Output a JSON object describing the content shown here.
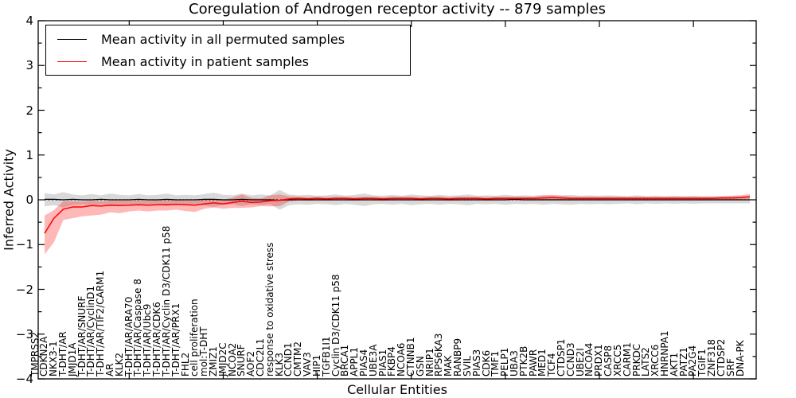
{
  "figure": {
    "title": "Coregulation of Androgen receptor activity -- 879 samples",
    "xlabel": "Cellular Entities",
    "ylabel": "Inferred Activity"
  },
  "legend": {
    "entries": [
      {
        "label": "Mean activity in all permuted samples",
        "color": "#000000"
      },
      {
        "label": "Mean activity in patient samples",
        "color": "#ff0000"
      }
    ]
  },
  "axes": {
    "y_tick_labels": [
      "4",
      "3",
      "2",
      "1",
      "0",
      "−1",
      "−2",
      "−3",
      "−4"
    ],
    "y_tick_values": [
      4,
      3,
      2,
      1,
      0,
      -1,
      -2,
      -3,
      -4
    ],
    "ylim": [
      -4,
      4
    ]
  },
  "chart_data": {
    "type": "line",
    "title": "Coregulation of Androgen receptor activity -- 879 samples",
    "xlabel": "Cellular Entities",
    "ylabel": "Inferred Activity",
    "ylim": [
      -4,
      4
    ],
    "grid": false,
    "legend_position": "upper left",
    "zero_reference_line": 0,
    "categories": [
      "TMPRSS2",
      "CDKN2A",
      "NKX3-1",
      "T-DHT/AR",
      "JMJD1A",
      "T-DHT/AR/SNURF",
      "T-DHT/AR/CyclinD1",
      "T-DHT/AR/TIF2/CARM1",
      "AR",
      "KLK2",
      "T-DHT/AR/ARA70",
      "T-DHT/AR/Caspase 8",
      "T-DHT/AR/Ubc9",
      "T-DHT/AR/CDK6",
      "T-DHT/AR/Cyclin D3/CDK11 p58",
      "T-DHT/AR/PRX1",
      "FHL2",
      "cell proliferation",
      "mol:T-DHT",
      "ZMIZ1",
      "JMJD2C",
      "NCOA2",
      "SNURF",
      "AOF2",
      "CDC2L1",
      "response to oxidative stress",
      "KLK3",
      "CCND1",
      "CMTM2",
      "VAV3",
      "HIP1",
      "TGFB1I1",
      "Cyclin D3/CDK11 p58",
      "BRCA1",
      "APPL1",
      "PIAS4",
      "UBE3A",
      "PIAS1",
      "FKBP4",
      "NCOA6",
      "CTNNB1",
      "GSN",
      "NRIP1",
      "RPS6KA3",
      "MAK",
      "RANBP9",
      "SVIL",
      "PIAS3",
      "CDK6",
      "TMF1",
      "PELP1",
      "UBA3",
      "PTK2B",
      "PAWR",
      "MED1",
      "TCF4",
      "CTDSP1",
      "CCND3",
      "UBE2I",
      "NCOA4",
      "PRDX1",
      "CASP8",
      "XRCC5",
      "CARM1",
      "PRKDC",
      "LATS2",
      "XRCC6",
      "HNRNPA1",
      "AKT1",
      "PATZ1",
      "PA2G4",
      "TGIF1",
      "ZNF318",
      "CTDSP2",
      "SRF",
      "DNA-PK"
    ],
    "series": [
      {
        "name": "Mean activity in all permuted samples",
        "color": "#000000",
        "band_color": "rgba(0,0,0,0.15)",
        "line_width": 1.3,
        "values": [
          0.01,
          0.01,
          0.0,
          0.01,
          0.0,
          0.0,
          0.01,
          0.0,
          0.0,
          0.0,
          0.01,
          0.0,
          0.0,
          0.01,
          0.0,
          0.0,
          0.0,
          0.01,
          0.01,
          0.0,
          0.0,
          0.01,
          0.0,
          0.0,
          0.0,
          -0.01,
          0.0,
          0.0,
          0.0,
          0.0,
          0.0,
          0.0,
          0.0,
          0.0,
          0.0,
          0.0,
          0.0,
          0.0,
          0.0,
          0.0,
          0.0,
          0.0,
          0.0,
          0.0,
          0.0,
          0.0,
          0.0,
          0.0,
          0.0,
          0.0,
          0.01,
          0.0,
          0.0,
          0.0,
          0.0,
          0.0,
          0.0,
          0.0,
          0.0,
          0.0,
          0.0,
          0.0,
          0.0,
          0.0,
          0.0,
          0.0,
          0.0,
          0.0,
          0.0,
          0.0,
          0.0,
          0.0,
          0.0,
          0.0,
          0.0,
          0.0
        ],
        "band_upper": [
          0.15,
          0.12,
          0.17,
          0.12,
          0.1,
          0.13,
          0.1,
          0.14,
          0.11,
          0.1,
          0.13,
          0.1,
          0.11,
          0.14,
          0.1,
          0.11,
          0.1,
          0.13,
          0.16,
          0.11,
          0.1,
          0.14,
          0.1,
          0.12,
          0.1,
          0.22,
          0.12,
          0.1,
          0.11,
          0.09,
          0.1,
          0.12,
          0.09,
          0.11,
          0.14,
          0.1,
          0.09,
          0.11,
          0.09,
          0.12,
          0.1,
          0.09,
          0.11,
          0.09,
          0.1,
          0.12,
          0.09,
          0.1,
          0.09,
          0.11,
          0.09,
          0.1,
          0.09,
          0.11,
          0.09,
          0.1,
          0.11,
          0.09,
          0.1,
          0.09,
          0.1,
          0.09,
          0.08,
          0.1,
          0.08,
          0.09,
          0.08,
          0.09,
          0.08,
          0.09,
          0.08,
          0.08,
          0.08,
          0.08,
          0.08,
          0.08
        ],
        "band_lower": [
          -0.15,
          -0.12,
          -0.17,
          -0.12,
          -0.1,
          -0.13,
          -0.1,
          -0.14,
          -0.11,
          -0.1,
          -0.13,
          -0.1,
          -0.11,
          -0.14,
          -0.1,
          -0.11,
          -0.1,
          -0.13,
          -0.16,
          -0.11,
          -0.1,
          -0.14,
          -0.1,
          -0.12,
          -0.1,
          -0.22,
          -0.12,
          -0.1,
          -0.11,
          -0.09,
          -0.1,
          -0.12,
          -0.09,
          -0.11,
          -0.14,
          -0.1,
          -0.09,
          -0.11,
          -0.09,
          -0.12,
          -0.1,
          -0.09,
          -0.11,
          -0.09,
          -0.1,
          -0.12,
          -0.09,
          -0.1,
          -0.09,
          -0.11,
          -0.09,
          -0.1,
          -0.09,
          -0.11,
          -0.09,
          -0.1,
          -0.11,
          -0.09,
          -0.1,
          -0.09,
          -0.1,
          -0.09,
          -0.08,
          -0.1,
          -0.08,
          -0.09,
          -0.08,
          -0.09,
          -0.08,
          -0.09,
          -0.08,
          -0.08,
          -0.08,
          -0.08,
          -0.08,
          -0.08
        ]
      },
      {
        "name": "Mean activity in patient samples",
        "color": "#ff0000",
        "band_color": "rgba(255,0,0,0.28)",
        "line_width": 1.5,
        "values": [
          -0.75,
          -0.41,
          -0.21,
          -0.16,
          -0.16,
          -0.13,
          -0.14,
          -0.12,
          -0.13,
          -0.12,
          -0.11,
          -0.12,
          -0.11,
          -0.11,
          -0.1,
          -0.11,
          -0.12,
          -0.09,
          -0.07,
          -0.09,
          -0.06,
          -0.03,
          -0.06,
          -0.05,
          -0.02,
          -0.01,
          0.02,
          0.03,
          0.02,
          0.03,
          0.02,
          0.03,
          0.03,
          0.02,
          0.03,
          0.03,
          0.02,
          0.03,
          0.03,
          0.03,
          0.02,
          0.03,
          0.03,
          0.02,
          0.03,
          0.03,
          0.03,
          0.02,
          0.03,
          0.03,
          0.03,
          0.03,
          0.03,
          0.04,
          0.05,
          0.04,
          0.03,
          0.03,
          0.03,
          0.03,
          0.03,
          0.03,
          0.03,
          0.03,
          0.03,
          0.03,
          0.03,
          0.03,
          0.03,
          0.03,
          0.03,
          0.03,
          0.04,
          0.04,
          0.05,
          0.07
        ],
        "band_upper": [
          -0.35,
          -0.23,
          -0.03,
          -0.03,
          -0.04,
          -0.02,
          -0.03,
          -0.02,
          -0.02,
          -0.02,
          -0.01,
          -0.02,
          -0.01,
          -0.01,
          -0.01,
          -0.02,
          -0.02,
          0.0,
          0.02,
          0.0,
          0.05,
          0.12,
          0.04,
          0.03,
          0.1,
          0.12,
          0.08,
          0.07,
          0.06,
          0.07,
          0.06,
          0.07,
          0.07,
          0.06,
          0.07,
          0.07,
          0.06,
          0.07,
          0.07,
          0.07,
          0.06,
          0.07,
          0.07,
          0.06,
          0.07,
          0.07,
          0.07,
          0.06,
          0.07,
          0.07,
          0.07,
          0.07,
          0.07,
          0.09,
          0.11,
          0.09,
          0.07,
          0.07,
          0.07,
          0.07,
          0.07,
          0.07,
          0.07,
          0.07,
          0.07,
          0.07,
          0.07,
          0.07,
          0.07,
          0.07,
          0.07,
          0.07,
          0.08,
          0.09,
          0.1,
          0.13
        ],
        "band_lower": [
          -1.22,
          -0.95,
          -0.45,
          -0.41,
          -0.37,
          -0.35,
          -0.33,
          -0.28,
          -0.3,
          -0.26,
          -0.24,
          -0.26,
          -0.24,
          -0.24,
          -0.22,
          -0.25,
          -0.27,
          -0.2,
          -0.17,
          -0.2,
          -0.18,
          -0.18,
          -0.17,
          -0.14,
          -0.15,
          -0.14,
          -0.04,
          -0.01,
          -0.02,
          -0.01,
          -0.02,
          -0.01,
          -0.01,
          -0.02,
          -0.01,
          -0.01,
          -0.02,
          -0.01,
          -0.01,
          -0.01,
          -0.02,
          -0.01,
          -0.01,
          -0.02,
          -0.01,
          -0.01,
          -0.01,
          -0.02,
          -0.01,
          -0.01,
          -0.01,
          -0.01,
          -0.01,
          -0.01,
          0.0,
          -0.01,
          -0.01,
          -0.01,
          -0.01,
          -0.01,
          -0.01,
          -0.01,
          -0.01,
          -0.01,
          -0.01,
          -0.01,
          -0.01,
          -0.01,
          -0.01,
          -0.01,
          -0.01,
          -0.01,
          0.0,
          0.0,
          0.01,
          0.02
        ]
      }
    ]
  }
}
